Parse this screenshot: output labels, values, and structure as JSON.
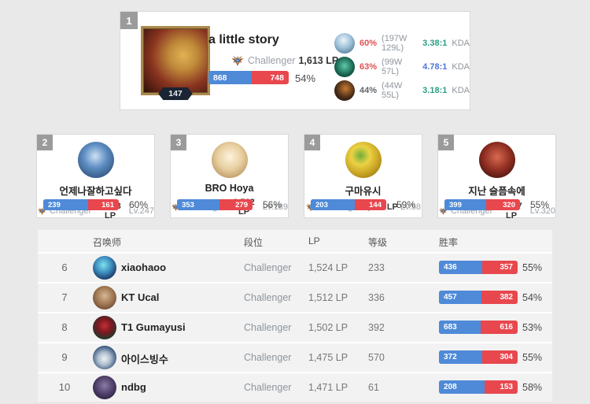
{
  "colors": {
    "bar_win": "#4e8ad8",
    "bar_loss": "#e8474e",
    "winrate_red": "#e25050",
    "kda_green": "#2b9e84",
    "kda_blue": "#5076d8",
    "muted_gray": "#8f969e"
  },
  "top_player": {
    "rank": "1",
    "level": "147",
    "name": "a little story",
    "tier": "Challenger",
    "lp": "1,613 LP",
    "wins": "868",
    "losses": "748",
    "winrate": "54%",
    "champions": [
      {
        "winrate": "60%",
        "winrate_color": "#e25050",
        "record": "(197W 129L)",
        "kda": "3.38:1",
        "kda_color": "#2b9e84",
        "kda_label": "KDA"
      },
      {
        "winrate": "63%",
        "winrate_color": "#e25050",
        "record": "(99W 57L)",
        "kda": "4.78:1",
        "kda_color": "#5076d8",
        "kda_label": "KDA"
      },
      {
        "winrate": "44%",
        "winrate_color": "#62686e",
        "record": "(44W 55L)",
        "kda": "3.18:1",
        "kda_color": "#2b9e84",
        "kda_label": "KDA"
      }
    ]
  },
  "cards": [
    {
      "rank": "2",
      "name": "언제나잘하고싶다",
      "tier": "Challenger",
      "lp": "1,613 LP",
      "level": "Lv.247",
      "wins": "239",
      "losses": "161",
      "winrate": "60%"
    },
    {
      "rank": "3",
      "name": "BRO Hoya",
      "tier": "Challenger",
      "lp": "1,562 LP",
      "level": "Lv.189",
      "wins": "353",
      "losses": "279",
      "winrate": "56%"
    },
    {
      "rank": "4",
      "name": "구마유시",
      "tier": "Challenger",
      "lp": "1,557 LP",
      "level": "Lv.58",
      "wins": "203",
      "losses": "144",
      "winrate": "59%"
    },
    {
      "rank": "5",
      "name": "지난 슬픔속에",
      "tier": "Challenger",
      "lp": "1,547 LP",
      "level": "Lv.320",
      "wins": "399",
      "losses": "320",
      "winrate": "55%"
    }
  ],
  "table": {
    "headers": {
      "summoner": "召唤师",
      "tier": "段位",
      "lp": "LP",
      "level": "等级",
      "winrate": "胜率"
    },
    "rows": [
      {
        "rank": "6",
        "name": "xiaohaoo",
        "tier": "Challenger",
        "lp": "1,524 LP",
        "level": "233",
        "wins": "436",
        "losses": "357",
        "winrate": "55%"
      },
      {
        "rank": "7",
        "name": "KT Ucal",
        "tier": "Challenger",
        "lp": "1,512 LP",
        "level": "336",
        "wins": "457",
        "losses": "382",
        "winrate": "54%"
      },
      {
        "rank": "8",
        "name": "T1 Gumayusi",
        "tier": "Challenger",
        "lp": "1,502 LP",
        "level": "392",
        "wins": "683",
        "losses": "616",
        "winrate": "53%"
      },
      {
        "rank": "9",
        "name": "아이스빙수",
        "tier": "Challenger",
        "lp": "1,475 LP",
        "level": "570",
        "wins": "372",
        "losses": "304",
        "winrate": "55%"
      },
      {
        "rank": "10",
        "name": "ndbg",
        "tier": "Challenger",
        "lp": "1,471 LP",
        "level": "61",
        "wins": "208",
        "losses": "153",
        "winrate": "58%"
      }
    ]
  }
}
